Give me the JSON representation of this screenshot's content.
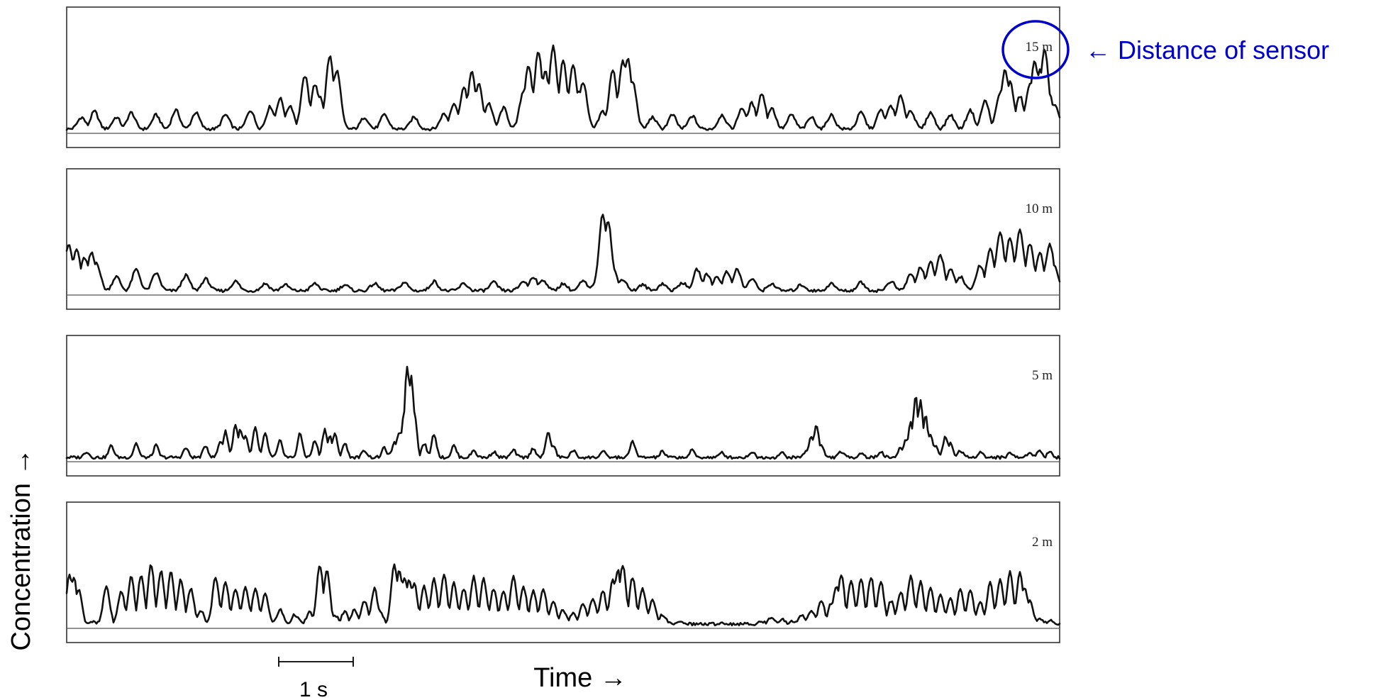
{
  "chart_data": {
    "type": "line",
    "title": "",
    "xlabel": "Time →",
    "ylabel": "Concentration →",
    "grid": false,
    "scale_bar_label": "1 s",
    "annotation": {
      "text": "← Distance of sensor",
      "color": "#0000cc",
      "target": "15 m"
    },
    "accent_color": "#0000cc",
    "trace_color": "#111111",
    "series": [
      {
        "name": "15 m",
        "peaks": [
          [
            0.015,
            0.1
          ],
          [
            0.028,
            0.15
          ],
          [
            0.05,
            0.1
          ],
          [
            0.065,
            0.14
          ],
          [
            0.09,
            0.12
          ],
          [
            0.11,
            0.16
          ],
          [
            0.13,
            0.14
          ],
          [
            0.16,
            0.12
          ],
          [
            0.185,
            0.16
          ],
          [
            0.205,
            0.19
          ],
          [
            0.215,
            0.26
          ],
          [
            0.225,
            0.2
          ],
          [
            0.24,
            0.45
          ],
          [
            0.25,
            0.38
          ],
          [
            0.255,
            0.28
          ],
          [
            0.265,
            0.62
          ],
          [
            0.272,
            0.5
          ],
          [
            0.3,
            0.1
          ],
          [
            0.32,
            0.12
          ],
          [
            0.35,
            0.1
          ],
          [
            0.38,
            0.13
          ],
          [
            0.39,
            0.22
          ],
          [
            0.4,
            0.35
          ],
          [
            0.408,
            0.48
          ],
          [
            0.415,
            0.38
          ],
          [
            0.425,
            0.22
          ],
          [
            0.44,
            0.18
          ],
          [
            0.46,
            0.32
          ],
          [
            0.465,
            0.54
          ],
          [
            0.47,
            0.3
          ],
          [
            0.475,
            0.66
          ],
          [
            0.482,
            0.5
          ],
          [
            0.49,
            0.7
          ],
          [
            0.5,
            0.58
          ],
          [
            0.51,
            0.55
          ],
          [
            0.515,
            0.32
          ],
          [
            0.52,
            0.4
          ],
          [
            0.54,
            0.15
          ],
          [
            0.55,
            0.5
          ],
          [
            0.56,
            0.58
          ],
          [
            0.565,
            0.6
          ],
          [
            0.57,
            0.4
          ],
          [
            0.59,
            0.1
          ],
          [
            0.61,
            0.12
          ],
          [
            0.63,
            0.11
          ],
          [
            0.66,
            0.12
          ],
          [
            0.68,
            0.18
          ],
          [
            0.69,
            0.22
          ],
          [
            0.7,
            0.3
          ],
          [
            0.71,
            0.18
          ],
          [
            0.73,
            0.12
          ],
          [
            0.75,
            0.1
          ],
          [
            0.77,
            0.12
          ],
          [
            0.8,
            0.14
          ],
          [
            0.82,
            0.16
          ],
          [
            0.83,
            0.2
          ],
          [
            0.84,
            0.28
          ],
          [
            0.85,
            0.16
          ],
          [
            0.87,
            0.14
          ],
          [
            0.89,
            0.12
          ],
          [
            0.91,
            0.16
          ],
          [
            0.925,
            0.24
          ],
          [
            0.94,
            0.3
          ],
          [
            0.945,
            0.5
          ],
          [
            0.95,
            0.4
          ],
          [
            0.96,
            0.28
          ],
          [
            0.97,
            0.38
          ],
          [
            0.975,
            0.58
          ],
          [
            0.98,
            0.5
          ],
          [
            0.985,
            0.68
          ],
          [
            0.99,
            0.28
          ],
          [
            0.995,
            0.2
          ]
        ]
      },
      {
        "name": "10 m",
        "peaks": [
          [
            0.002,
            0.4
          ],
          [
            0.01,
            0.35
          ],
          [
            0.018,
            0.28
          ],
          [
            0.025,
            0.32
          ],
          [
            0.03,
            0.24
          ],
          [
            0.05,
            0.12
          ],
          [
            0.07,
            0.18
          ],
          [
            0.09,
            0.15
          ],
          [
            0.12,
            0.13
          ],
          [
            0.14,
            0.1
          ],
          [
            0.17,
            0.08
          ],
          [
            0.2,
            0.06
          ],
          [
            0.22,
            0.05
          ],
          [
            0.25,
            0.06
          ],
          [
            0.28,
            0.05
          ],
          [
            0.31,
            0.06
          ],
          [
            0.34,
            0.07
          ],
          [
            0.37,
            0.08
          ],
          [
            0.4,
            0.06
          ],
          [
            0.43,
            0.07
          ],
          [
            0.46,
            0.08
          ],
          [
            0.47,
            0.12
          ],
          [
            0.48,
            0.09
          ],
          [
            0.5,
            0.06
          ],
          [
            0.52,
            0.08
          ],
          [
            0.535,
            0.12
          ],
          [
            0.54,
            0.65
          ],
          [
            0.545,
            0.6
          ],
          [
            0.55,
            0.2
          ],
          [
            0.56,
            0.1
          ],
          [
            0.58,
            0.05
          ],
          [
            0.6,
            0.06
          ],
          [
            0.62,
            0.07
          ],
          [
            0.635,
            0.18
          ],
          [
            0.645,
            0.14
          ],
          [
            0.655,
            0.12
          ],
          [
            0.665,
            0.16
          ],
          [
            0.675,
            0.18
          ],
          [
            0.69,
            0.1
          ],
          [
            0.71,
            0.06
          ],
          [
            0.74,
            0.05
          ],
          [
            0.77,
            0.06
          ],
          [
            0.8,
            0.07
          ],
          [
            0.83,
            0.08
          ],
          [
            0.85,
            0.14
          ],
          [
            0.86,
            0.2
          ],
          [
            0.87,
            0.24
          ],
          [
            0.88,
            0.3
          ],
          [
            0.89,
            0.18
          ],
          [
            0.9,
            0.12
          ],
          [
            0.92,
            0.22
          ],
          [
            0.93,
            0.35
          ],
          [
            0.94,
            0.5
          ],
          [
            0.95,
            0.45
          ],
          [
            0.96,
            0.52
          ],
          [
            0.97,
            0.4
          ],
          [
            0.98,
            0.32
          ],
          [
            0.99,
            0.4
          ],
          [
            0.995,
            0.2
          ]
        ]
      },
      {
        "name": "5 m",
        "peaks": [
          [
            0.02,
            0.05
          ],
          [
            0.045,
            0.1
          ],
          [
            0.07,
            0.12
          ],
          [
            0.09,
            0.1
          ],
          [
            0.12,
            0.08
          ],
          [
            0.14,
            0.1
          ],
          [
            0.155,
            0.14
          ],
          [
            0.16,
            0.22
          ],
          [
            0.17,
            0.28
          ],
          [
            0.175,
            0.24
          ],
          [
            0.18,
            0.18
          ],
          [
            0.19,
            0.25
          ],
          [
            0.2,
            0.2
          ],
          [
            0.215,
            0.14
          ],
          [
            0.235,
            0.2
          ],
          [
            0.25,
            0.14
          ],
          [
            0.26,
            0.24
          ],
          [
            0.265,
            0.18
          ],
          [
            0.27,
            0.2
          ],
          [
            0.28,
            0.12
          ],
          [
            0.3,
            0.06
          ],
          [
            0.32,
            0.08
          ],
          [
            0.33,
            0.12
          ],
          [
            0.335,
            0.22
          ],
          [
            0.34,
            0.4
          ],
          [
            0.343,
            0.78
          ],
          [
            0.347,
            0.7
          ],
          [
            0.35,
            0.4
          ],
          [
            0.36,
            0.12
          ],
          [
            0.37,
            0.2
          ],
          [
            0.39,
            0.1
          ],
          [
            0.41,
            0.06
          ],
          [
            0.43,
            0.05
          ],
          [
            0.45,
            0.06
          ],
          [
            0.47,
            0.08
          ],
          [
            0.485,
            0.22
          ],
          [
            0.49,
            0.1
          ],
          [
            0.51,
            0.06
          ],
          [
            0.54,
            0.05
          ],
          [
            0.57,
            0.14
          ],
          [
            0.6,
            0.05
          ],
          [
            0.63,
            0.06
          ],
          [
            0.66,
            0.04
          ],
          [
            0.69,
            0.05
          ],
          [
            0.72,
            0.04
          ],
          [
            0.745,
            0.06
          ],
          [
            0.75,
            0.18
          ],
          [
            0.755,
            0.28
          ],
          [
            0.76,
            0.1
          ],
          [
            0.78,
            0.05
          ],
          [
            0.8,
            0.04
          ],
          [
            0.82,
            0.05
          ],
          [
            0.84,
            0.08
          ],
          [
            0.845,
            0.15
          ],
          [
            0.85,
            0.3
          ],
          [
            0.855,
            0.52
          ],
          [
            0.86,
            0.48
          ],
          [
            0.865,
            0.35
          ],
          [
            0.87,
            0.2
          ],
          [
            0.875,
            0.1
          ],
          [
            0.885,
            0.18
          ],
          [
            0.89,
            0.12
          ],
          [
            0.9,
            0.06
          ],
          [
            0.92,
            0.05
          ],
          [
            0.95,
            0.04
          ],
          [
            0.97,
            0.05
          ],
          [
            0.98,
            0.06
          ],
          [
            0.99,
            0.05
          ]
        ]
      },
      {
        "name": "2 m",
        "peaks": [
          [
            0.003,
            0.42
          ],
          [
            0.007,
            0.4
          ],
          [
            0.012,
            0.3
          ],
          [
            0.025,
            0.02
          ],
          [
            0.04,
            0.32
          ],
          [
            0.055,
            0.28
          ],
          [
            0.065,
            0.4
          ],
          [
            0.075,
            0.42
          ],
          [
            0.085,
            0.5
          ],
          [
            0.095,
            0.45
          ],
          [
            0.105,
            0.44
          ],
          [
            0.115,
            0.38
          ],
          [
            0.125,
            0.3
          ],
          [
            0.135,
            0.12
          ],
          [
            0.15,
            0.4
          ],
          [
            0.16,
            0.35
          ],
          [
            0.17,
            0.3
          ],
          [
            0.18,
            0.32
          ],
          [
            0.19,
            0.3
          ],
          [
            0.2,
            0.26
          ],
          [
            0.215,
            0.12
          ],
          [
            0.23,
            0.08
          ],
          [
            0.245,
            0.1
          ],
          [
            0.255,
            0.5
          ],
          [
            0.262,
            0.45
          ],
          [
            0.27,
            0.08
          ],
          [
            0.28,
            0.1
          ],
          [
            0.29,
            0.12
          ],
          [
            0.3,
            0.2
          ],
          [
            0.31,
            0.3
          ],
          [
            0.315,
            0.12
          ],
          [
            0.33,
            0.5
          ],
          [
            0.335,
            0.45
          ],
          [
            0.34,
            0.4
          ],
          [
            0.345,
            0.38
          ],
          [
            0.35,
            0.35
          ],
          [
            0.36,
            0.32
          ],
          [
            0.37,
            0.38
          ],
          [
            0.38,
            0.42
          ],
          [
            0.39,
            0.35
          ],
          [
            0.4,
            0.3
          ],
          [
            0.41,
            0.4
          ],
          [
            0.42,
            0.38
          ],
          [
            0.43,
            0.3
          ],
          [
            0.44,
            0.28
          ],
          [
            0.45,
            0.4
          ],
          [
            0.46,
            0.32
          ],
          [
            0.47,
            0.28
          ],
          [
            0.48,
            0.3
          ],
          [
            0.49,
            0.2
          ],
          [
            0.5,
            0.12
          ],
          [
            0.51,
            0.1
          ],
          [
            0.52,
            0.18
          ],
          [
            0.53,
            0.22
          ],
          [
            0.54,
            0.28
          ],
          [
            0.55,
            0.38
          ],
          [
            0.555,
            0.46
          ],
          [
            0.56,
            0.5
          ],
          [
            0.57,
            0.4
          ],
          [
            0.58,
            0.3
          ],
          [
            0.59,
            0.2
          ],
          [
            0.6,
            0.08
          ],
          [
            0.62,
            0.02
          ],
          [
            0.66,
            0.01
          ],
          [
            0.7,
            0.02
          ],
          [
            0.71,
            0.06
          ],
          [
            0.72,
            0.04
          ],
          [
            0.73,
            0.02
          ],
          [
            0.74,
            0.08
          ],
          [
            0.75,
            0.12
          ],
          [
            0.76,
            0.2
          ],
          [
            0.77,
            0.18
          ],
          [
            0.775,
            0.32
          ],
          [
            0.78,
            0.42
          ],
          [
            0.79,
            0.36
          ],
          [
            0.8,
            0.38
          ],
          [
            0.81,
            0.4
          ],
          [
            0.82,
            0.36
          ],
          [
            0.83,
            0.2
          ],
          [
            0.84,
            0.28
          ],
          [
            0.85,
            0.4
          ],
          [
            0.86,
            0.36
          ],
          [
            0.87,
            0.3
          ],
          [
            0.88,
            0.25
          ],
          [
            0.89,
            0.22
          ],
          [
            0.9,
            0.3
          ],
          [
            0.91,
            0.28
          ],
          [
            0.92,
            0.18
          ],
          [
            0.93,
            0.35
          ],
          [
            0.94,
            0.38
          ],
          [
            0.95,
            0.45
          ],
          [
            0.96,
            0.44
          ],
          [
            0.965,
            0.3
          ],
          [
            0.97,
            0.2
          ],
          [
            0.98,
            0.04
          ],
          [
            0.99,
            0.03
          ]
        ]
      }
    ]
  }
}
